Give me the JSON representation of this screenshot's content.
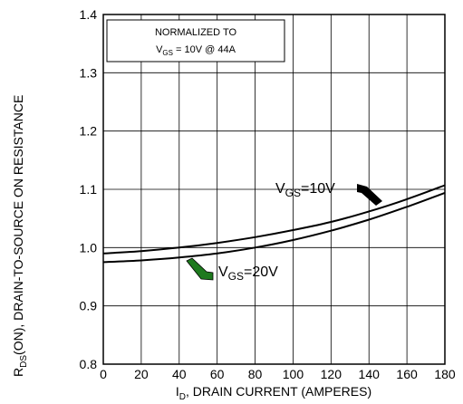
{
  "chart_data": {
    "type": "line",
    "title": "",
    "xlabel": "DRAIN CURRENT (AMPERES)",
    "xlabel_symbol": "I",
    "xlabel_subscript": "D",
    "ylabel_symbol": "R",
    "ylabel_subscript": "DS",
    "ylabel": "(ON), DRAIN-TO-SOURCE ON RESISTANCE",
    "xlim": [
      0,
      180
    ],
    "ylim": [
      0.8,
      1.4
    ],
    "x_ticks": [
      "0",
      "20",
      "40",
      "60",
      "80",
      "100",
      "120",
      "140",
      "160",
      "180"
    ],
    "y_ticks": [
      "0.8",
      "0.9",
      "1.0",
      "1.1",
      "1.2",
      "1.3",
      "1.4"
    ],
    "grid": true,
    "annotation": {
      "line1": "NORMALIZED TO",
      "line2_sym": "V",
      "line2_sub": "GS",
      "line2_rest": " = 10V  @  44A"
    },
    "series": [
      {
        "name_sym": "V",
        "name_sub": "GS",
        "name_rest": "=10V",
        "color": "#000000",
        "x": [
          0,
          20,
          40,
          60,
          80,
          100,
          120,
          140,
          160,
          180
        ],
        "y": [
          0.99,
          0.994,
          1.0,
          1.008,
          1.018,
          1.03,
          1.044,
          1.062,
          1.083,
          1.107
        ]
      },
      {
        "name_sym": "V",
        "name_sub": "GS",
        "name_rest": "=20V",
        "color": "#000000",
        "x": [
          0,
          20,
          40,
          60,
          80,
          100,
          120,
          140,
          160,
          180
        ],
        "y": [
          0.975,
          0.978,
          0.983,
          0.99,
          1.0,
          1.013,
          1.029,
          1.048,
          1.07,
          1.094
        ]
      }
    ],
    "marker_colors": {
      "vgs10": "#000000",
      "vgs20": "#1e7a1e"
    }
  }
}
